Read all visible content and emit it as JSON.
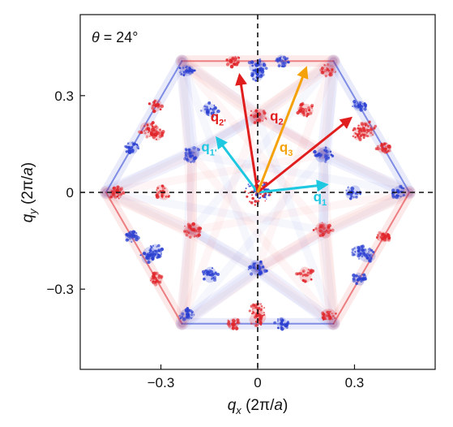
{
  "chart_data": {
    "type": "scatter",
    "title": "",
    "annotation": {
      "symbol": "θ",
      "text": " = 24°"
    },
    "xlabel": {
      "var": "q",
      "sub": "x",
      "unit_open": " (2π/",
      "unit_var": "a",
      "unit_close": ")"
    },
    "ylabel": {
      "var": "q",
      "sub": "y",
      "unit_open": " (2π/",
      "unit_var": "a",
      "unit_close": ")"
    },
    "xlim": [
      -0.55,
      0.55
    ],
    "ylim": [
      -0.55,
      0.55
    ],
    "xticks": [
      {
        "value": -0.3,
        "label": "−0.3"
      },
      {
        "value": 0,
        "label": "0"
      },
      {
        "value": 0.3,
        "label": "0.3"
      }
    ],
    "yticks": [
      {
        "value": 0.3,
        "label": "0.3"
      },
      {
        "value": 0,
        "label": "0"
      },
      {
        "value": -0.3,
        "label": "−0.3"
      }
    ],
    "grid": false,
    "dashed_axes_through_origin": true,
    "hexagon_outer_vertex": 0.47,
    "hexagon_inner_fraction": 0.5,
    "colors": {
      "positive": "#e0262b",
      "negative": "#2a3fd1",
      "q1": "#1ec8e0",
      "q2": "#e01e1e",
      "q3": "#f5a20a"
    },
    "vectors": [
      {
        "name": "q",
        "sub": "1",
        "x": 0.213,
        "y": 0.024,
        "color": "#1ec8e0"
      },
      {
        "name": "q",
        "sub": "1'",
        "x": -0.126,
        "y": 0.168,
        "color": "#1ec8e0"
      },
      {
        "name": "q",
        "sub": "2",
        "x": 0.288,
        "y": 0.23,
        "color": "#e01e1e"
      },
      {
        "name": "q",
        "sub": "2'",
        "x": -0.056,
        "y": 0.363,
        "color": "#e01e1e"
      },
      {
        "name": "q",
        "sub": "3",
        "x": 0.15,
        "y": 0.385,
        "color": "#f5a20a"
      }
    ]
  }
}
